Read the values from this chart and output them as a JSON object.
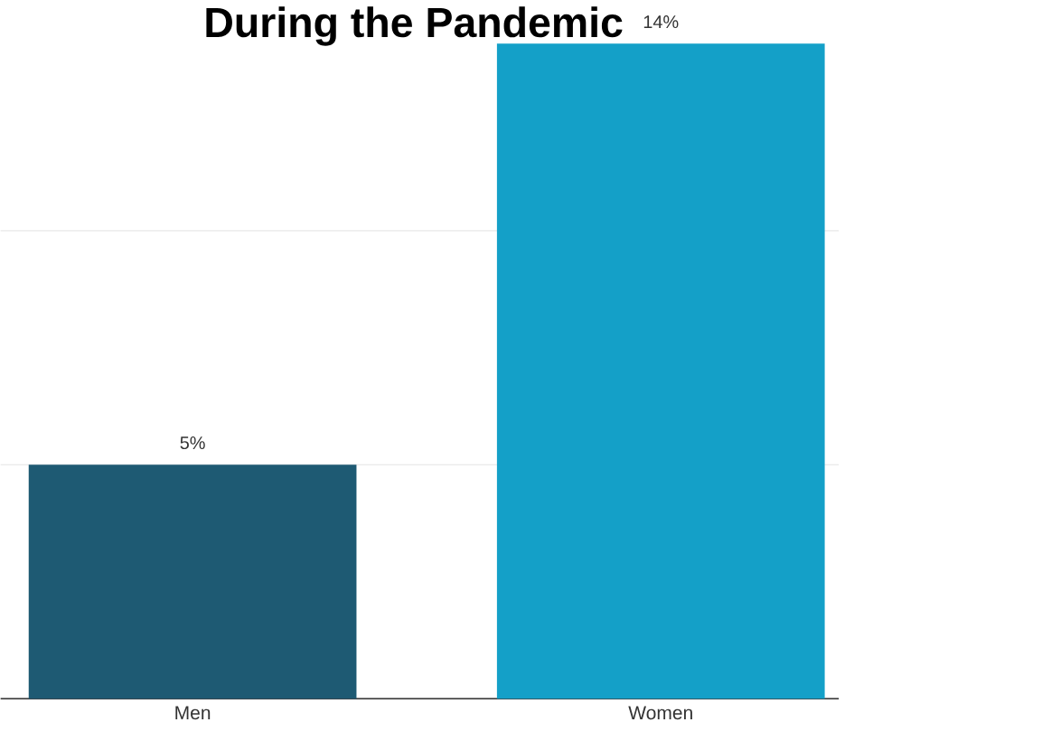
{
  "chart_data": {
    "type": "bar",
    "title": "During the Pandemic",
    "categories": [
      "Men",
      "Women"
    ],
    "values": [
      5,
      14
    ],
    "colors": [
      "#1e5a73",
      "#14a0c8"
    ],
    "value_labels": [
      "5%",
      "14%"
    ],
    "ref_lines": [
      {
        "axis": "y",
        "value": 5,
        "color": "#e0e0e0"
      },
      {
        "axis": "y",
        "value": 10,
        "color": "#e0e0e0"
      }
    ],
    "tick_labels": "x"
  }
}
